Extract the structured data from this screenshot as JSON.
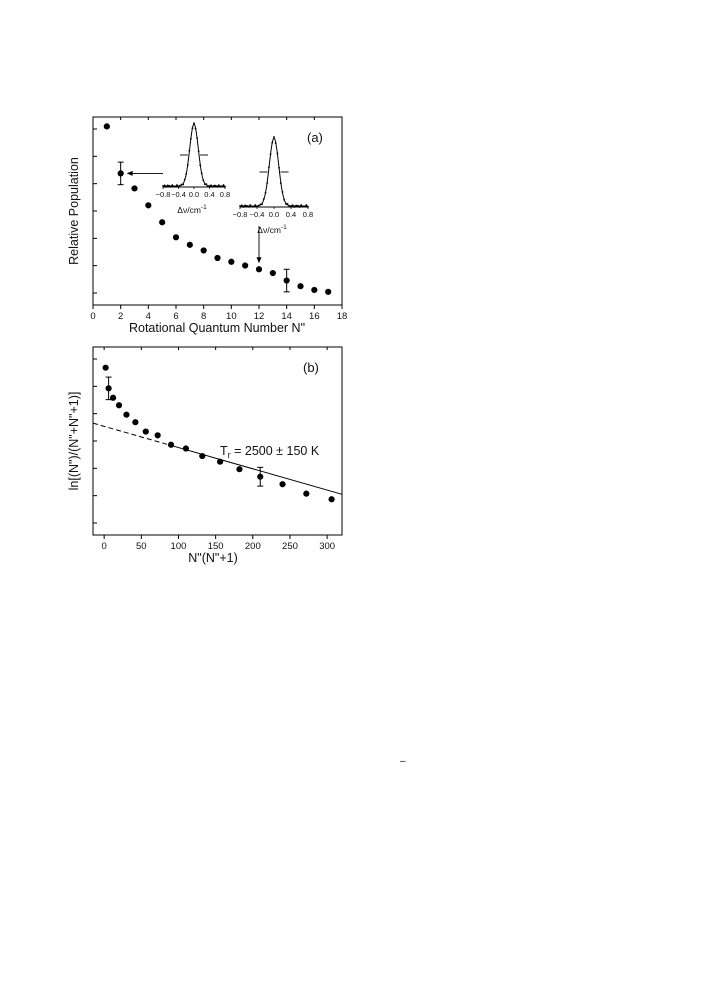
{
  "figure": {
    "page_mark": "–"
  },
  "chart_data": [
    {
      "type": "scatter",
      "panel": "(a)",
      "title": "",
      "xlabel": "Rotational Quantum Number N\"",
      "ylabel": "Relative Population",
      "xlim": [
        0,
        18
      ],
      "ylim": [
        0,
        1
      ],
      "xticks": [
        0,
        2,
        4,
        6,
        8,
        10,
        12,
        14,
        16,
        18
      ],
      "y_tick_labels": "none",
      "series": [
        {
          "x": [
            1,
            2,
            3,
            4,
            5,
            6,
            7,
            8,
            9,
            10,
            11,
            12,
            13,
            14,
            15,
            16,
            17
          ],
          "y": [
            0.95,
            0.7,
            0.62,
            0.53,
            0.44,
            0.36,
            0.32,
            0.29,
            0.25,
            0.23,
            0.21,
            0.19,
            0.17,
            0.13,
            0.1,
            0.08,
            0.07
          ],
          "error_bars": [
            {
              "x": 2,
              "low": 0.64,
              "high": 0.76
            },
            {
              "x": 14,
              "low": 0.07,
              "high": 0.19
            }
          ]
        }
      ],
      "insets": [
        {
          "xlabel": "Δν/cm",
          "xlabel_superscript": "-1",
          "xticks": [
            "-0.8",
            "-0.4",
            "0.0",
            "0.4",
            "0.8"
          ],
          "profile": "gaussian",
          "center": 0.0,
          "fwhm": 0.26,
          "arrow_target_x": 2
        },
        {
          "xlabel": "Δν/cm",
          "xlabel_superscript": "-1",
          "xticks": [
            "-0.8",
            "-0.4",
            "0.0",
            "0.4",
            "0.8"
          ],
          "profile": "gaussian",
          "center": 0.0,
          "fwhm": 0.26,
          "arrow_target_x": 12
        }
      ]
    },
    {
      "type": "scatter",
      "panel": "(b)",
      "title": "",
      "xlabel": "N\"(N\"+1)",
      "ylabel": "ln[(N\")/(N\"+N\"+1)]",
      "xlim": [
        -15,
        320
      ],
      "ylim": [
        0,
        1
      ],
      "xticks": [
        0,
        50,
        100,
        150,
        200,
        250,
        300
      ],
      "y_tick_labels": "none",
      "series": [
        {
          "x": [
            2,
            6,
            12,
            20,
            30,
            42,
            56,
            72,
            90,
            110,
            132,
            156,
            182,
            210,
            240,
            272,
            306
          ],
          "y": [
            0.89,
            0.78,
            0.73,
            0.69,
            0.64,
            0.6,
            0.55,
            0.53,
            0.48,
            0.46,
            0.42,
            0.39,
            0.35,
            0.31,
            0.27,
            0.22,
            0.19
          ],
          "error_bars": [
            {
              "x": 6,
              "low": 0.72,
              "high": 0.84
            },
            {
              "x": 210,
              "low": 0.26,
              "high": 0.36
            }
          ]
        }
      ],
      "fit": {
        "style": "solid-then-dashed",
        "slope": -0.00113,
        "intercept": 0.578,
        "dashed_until": 90
      },
      "annotation": {
        "main": "T",
        "subscript": "r",
        "rest": " = 2500 ± 150 K"
      }
    }
  ]
}
